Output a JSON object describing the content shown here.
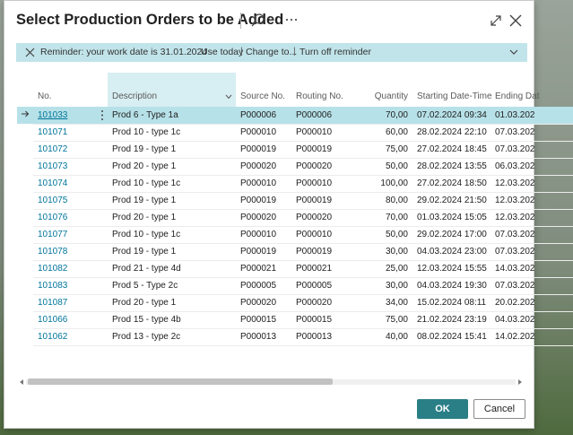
{
  "dialog": {
    "title": "Select Production Orders to be Added",
    "icons": {
      "search": "search-icon",
      "more": "ellipsis-icon",
      "expand": "expand-icon",
      "close": "close-icon"
    }
  },
  "reminder": {
    "message": "Reminder: your work date is 31.01.2024",
    "actions": [
      "Use today",
      "Change to...",
      "Turn off reminder"
    ],
    "background": "#c1e4ea"
  },
  "table": {
    "columns": [
      "No.",
      "Description",
      "Source No.",
      "Routing No.",
      "Quantity",
      "Starting Date-Time",
      "Ending Dat"
    ],
    "rows": [
      {
        "no": "101033",
        "description": "Prod 6 - Type 1a",
        "source": "P000006",
        "routing": "P000006",
        "quantity": "70,00",
        "start": "07.02.2024 09:34",
        "end": "01.03.202"
      },
      {
        "no": "101071",
        "description": "Prod 10 - type 1c",
        "source": "P000010",
        "routing": "P000010",
        "quantity": "60,00",
        "start": "28.02.2024 22:10",
        "end": "07.03.202"
      },
      {
        "no": "101072",
        "description": "Prod 19 - type 1",
        "source": "P000019",
        "routing": "P000019",
        "quantity": "75,00",
        "start": "27.02.2024 18:45",
        "end": "07.03.202"
      },
      {
        "no": "101073",
        "description": "Prod 20 - type 1",
        "source": "P000020",
        "routing": "P000020",
        "quantity": "50,00",
        "start": "28.02.2024 13:55",
        "end": "06.03.202"
      },
      {
        "no": "101074",
        "description": "Prod 10 - type 1c",
        "source": "P000010",
        "routing": "P000010",
        "quantity": "100,00",
        "start": "27.02.2024 18:50",
        "end": "12.03.202"
      },
      {
        "no": "101075",
        "description": "Prod 19 - type 1",
        "source": "P000019",
        "routing": "P000019",
        "quantity": "80,00",
        "start": "29.02.2024 21:50",
        "end": "12.03.202"
      },
      {
        "no": "101076",
        "description": "Prod 20 - type 1",
        "source": "P000020",
        "routing": "P000020",
        "quantity": "70,00",
        "start": "01.03.2024 15:05",
        "end": "12.03.202"
      },
      {
        "no": "101077",
        "description": "Prod 10 - type 1c",
        "source": "P000010",
        "routing": "P000010",
        "quantity": "50,00",
        "start": "29.02.2024 17:00",
        "end": "07.03.202"
      },
      {
        "no": "101078",
        "description": "Prod 19 - type 1",
        "source": "P000019",
        "routing": "P000019",
        "quantity": "30,00",
        "start": "04.03.2024 23:00",
        "end": "07.03.202"
      },
      {
        "no": "101082",
        "description": "Prod 21 - type 4d",
        "source": "P000021",
        "routing": "P000021",
        "quantity": "25,00",
        "start": "12.03.2024 15:55",
        "end": "14.03.202"
      },
      {
        "no": "101083",
        "description": "Prod 5 - Type 2c",
        "source": "P000005",
        "routing": "P000005",
        "quantity": "30,00",
        "start": "04.03.2024 19:30",
        "end": "07.03.202"
      },
      {
        "no": "101087",
        "description": "Prod 20 - type 1",
        "source": "P000020",
        "routing": "P000020",
        "quantity": "34,00",
        "start": "15.02.2024 08:11",
        "end": "20.02.202"
      },
      {
        "no": "101066",
        "description": "Prod 15 - type 4b",
        "source": "P000015",
        "routing": "P000015",
        "quantity": "75,00",
        "start": "21.02.2024 23:19",
        "end": "04.03.202"
      },
      {
        "no": "101062",
        "description": "Prod 13 - type 2c",
        "source": "P000013",
        "routing": "P000013",
        "quantity": "40,00",
        "start": "08.02.2024 15:41",
        "end": "14.02.202"
      }
    ],
    "selected_row": 0,
    "selected_color": "#b7e1e8",
    "link_color": "#00759a"
  },
  "footer": {
    "ok_label": "OK",
    "cancel_label": "Cancel",
    "ok_color": "#2a7f87"
  }
}
